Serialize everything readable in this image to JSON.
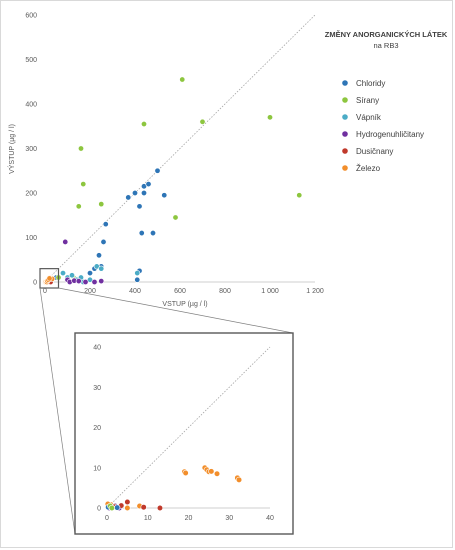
{
  "chart_data": [
    {
      "type": "scatter",
      "title": "ZMĚNY ANORGANICKÝCH LÁTEK",
      "subtitle": "na RB3",
      "xlabel": "VSTUP (µg / l)",
      "ylabel": "VÝSTUP (µg / l)",
      "xlim": [
        0,
        1200
      ],
      "ylim": [
        0,
        600
      ],
      "xticks": [
        "0",
        "200",
        "400",
        "600",
        "800",
        "1 000",
        "1 200"
      ],
      "yticks": [
        "0",
        "100",
        "200",
        "300",
        "400",
        "500",
        "600"
      ],
      "reference_line": "y = x (dotted)",
      "grid": false,
      "legend_position": "right",
      "series": [
        {
          "name": "Chloridy",
          "color": "#2E75B6",
          "points": [
            [
              50,
              10
            ],
            [
              160,
              5
            ],
            [
              200,
              20
            ],
            [
              220,
              30
            ],
            [
              240,
              60
            ],
            [
              250,
              35
            ],
            [
              270,
              130
            ],
            [
              260,
              90
            ],
            [
              370,
              190
            ],
            [
              400,
              200
            ],
            [
              420,
              170
            ],
            [
              430,
              110
            ],
            [
              440,
              215
            ],
            [
              440,
              200
            ],
            [
              460,
              220
            ],
            [
              480,
              110
            ],
            [
              500,
              250
            ],
            [
              530,
              195
            ],
            [
              420,
              25
            ],
            [
              410,
              5
            ]
          ]
        },
        {
          "name": "Sírany",
          "color": "#8DC63F",
          "points": [
            [
              160,
              300
            ],
            [
              170,
              220
            ],
            [
              150,
              170
            ],
            [
              250,
              175
            ],
            [
              440,
              355
            ],
            [
              580,
              145
            ],
            [
              610,
              455
            ],
            [
              700,
              360
            ],
            [
              1000,
              370
            ],
            [
              1130,
              195
            ],
            [
              60,
              10
            ],
            [
              100,
              5
            ],
            [
              130,
              8
            ]
          ]
        },
        {
          "name": "Vápník",
          "color": "#4BACC6",
          "points": [
            [
              80,
              20
            ],
            [
              100,
              10
            ],
            [
              120,
              15
            ],
            [
              140,
              5
            ],
            [
              160,
              10
            ],
            [
              170,
              0
            ],
            [
              200,
              5
            ],
            [
              230,
              35
            ],
            [
              250,
              30
            ],
            [
              410,
              20
            ]
          ]
        },
        {
          "name": "Hydrogenuhličitany",
          "color": "#7030A0",
          "points": [
            [
              90,
              90
            ],
            [
              100,
              5
            ],
            [
              110,
              0
            ],
            [
              130,
              3
            ],
            [
              150,
              2
            ],
            [
              180,
              0
            ],
            [
              220,
              0
            ],
            [
              250,
              2
            ]
          ]
        },
        {
          "name": "Dusičnany",
          "color": "#C0392B",
          "points": [
            [
              5,
              2
            ],
            [
              10,
              0
            ],
            [
              13,
              0
            ],
            [
              20,
              1
            ],
            [
              25,
              0
            ]
          ]
        },
        {
          "name": "Železo",
          "color": "#F28E2B",
          "points": [
            [
              0,
              0
            ],
            [
              1,
              0
            ],
            [
              2,
              1
            ],
            [
              5,
              1
            ],
            [
              8,
              0
            ],
            [
              19,
              9
            ],
            [
              24,
              10
            ],
            [
              25,
              9
            ],
            [
              27,
              8
            ],
            [
              32,
              7
            ],
            [
              10,
              3
            ],
            [
              15,
              5
            ],
            [
              20,
              8
            ]
          ]
        }
      ]
    },
    {
      "type": "scatter",
      "title": "",
      "xlim": [
        0,
        40
      ],
      "ylim": [
        0,
        40
      ],
      "xticks": [
        "0",
        "10",
        "20",
        "30",
        "40"
      ],
      "yticks": [
        "0",
        "10",
        "20",
        "30",
        "40"
      ],
      "reference_line": "y = x (dotted)",
      "grid": false,
      "series": [
        {
          "name": "Železo",
          "color": "#F28E2B",
          "points": [
            [
              19,
              9
            ],
            [
              19.3,
              8.7
            ],
            [
              24,
              10
            ],
            [
              24.5,
              9.5
            ],
            [
              25,
              9
            ],
            [
              25.6,
              9.1
            ],
            [
              27,
              8.5
            ],
            [
              32,
              7.5
            ],
            [
              32.4,
              7
            ],
            [
              0.5,
              0.3
            ],
            [
              1,
              0.8
            ],
            [
              1.5,
              0.2
            ],
            [
              0.2,
              1
            ],
            [
              2,
              0.5
            ],
            [
              8,
              0.5
            ],
            [
              5,
              0
            ]
          ]
        },
        {
          "name": "Hydrogenuhličitany",
          "color": "#7030A0",
          "points": [
            [
              1,
              0
            ],
            [
              2,
              0.5
            ],
            [
              3,
              0
            ],
            [
              0.5,
              0
            ]
          ]
        },
        {
          "name": "Dusičnany",
          "color": "#C0392B",
          "points": [
            [
              5,
              1.5
            ],
            [
              9,
              0.2
            ],
            [
              13,
              0
            ],
            [
              1.8,
              0.3
            ],
            [
              3.5,
              0.6
            ]
          ]
        },
        {
          "name": "Chloridy",
          "color": "#2E75B6",
          "points": [
            [
              0.3,
              0.2
            ],
            [
              2.5,
              0.1
            ]
          ]
        },
        {
          "name": "Sírany",
          "color": "#8DC63F",
          "points": [
            [
              0.8,
              0.5
            ],
            [
              1.2,
              0
            ]
          ]
        }
      ]
    }
  ]
}
